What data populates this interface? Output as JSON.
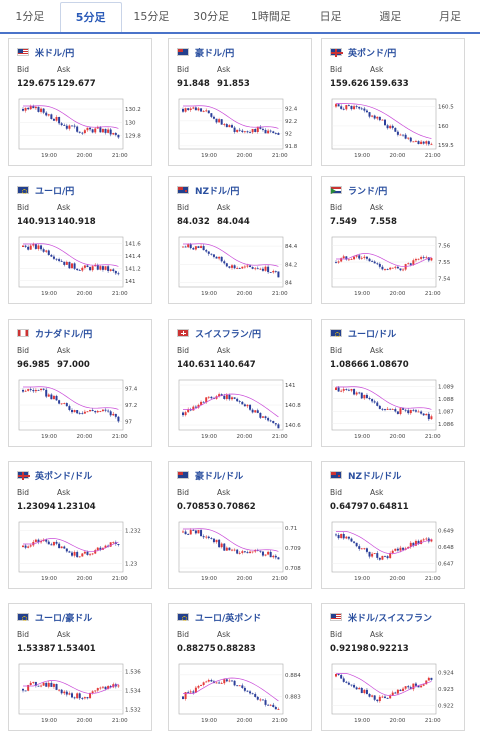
{
  "tabs": [
    {
      "label": "1分足"
    },
    {
      "label": "5分足"
    },
    {
      "label": "15分足"
    },
    {
      "label": "30分足"
    },
    {
      "label": "1時間足"
    },
    {
      "label": "日足"
    },
    {
      "label": "週足"
    },
    {
      "label": "月足"
    }
  ],
  "active_tab": 1,
  "bid_label": "Bid",
  "ask_label": "Ask",
  "x_ticks": [
    "19:00",
    "20:00",
    "21:00"
  ],
  "cards": [
    {
      "pair": "米ドル/円",
      "bid": "129.675",
      "ask": "129.677",
      "flag": "us",
      "y_ticks": [
        "130.2",
        "130",
        "129.8"
      ],
      "ylim": [
        129.6,
        130.35
      ],
      "trend": "down"
    },
    {
      "pair": "豪ドル/円",
      "bid": "91.848",
      "ask": "91.853",
      "flag": "au",
      "y_ticks": [
        "92.4",
        "92.2",
        "92",
        "91.8"
      ],
      "ylim": [
        91.75,
        92.55
      ],
      "trend": "down"
    },
    {
      "pair": "英ポンド/円",
      "bid": "159.626",
      "ask": "159.633",
      "flag": "gb",
      "y_ticks": [
        "160.5",
        "160",
        "159.5"
      ],
      "ylim": [
        159.4,
        160.7
      ],
      "trend": "vdown"
    },
    {
      "pair": "ユーロ/円",
      "bid": "140.913",
      "ask": "140.918",
      "flag": "eu",
      "y_ticks": [
        "141.6",
        "141.4",
        "141.2",
        "141"
      ],
      "ylim": [
        140.9,
        141.7
      ],
      "trend": "down"
    },
    {
      "pair": "NZドル/円",
      "bid": "84.032",
      "ask": "84.044",
      "flag": "nz",
      "y_ticks": [
        "84.4",
        "84.2",
        "84"
      ],
      "ylim": [
        83.95,
        84.5
      ],
      "trend": "down"
    },
    {
      "pair": "ランド/円",
      "bid": "7.549",
      "ask": "7.558",
      "flag": "za",
      "y_ticks": [
        "7.56",
        "7.55",
        "7.54"
      ],
      "ylim": [
        7.535,
        7.565
      ],
      "trend": "flat"
    },
    {
      "pair": "カナダドル/円",
      "bid": "96.985",
      "ask": "97.000",
      "flag": "ca",
      "y_ticks": [
        "97.4",
        "97.2",
        "97"
      ],
      "ylim": [
        96.9,
        97.5
      ],
      "trend": "down"
    },
    {
      "pair": "スイスフラン/円",
      "bid": "140.631",
      "ask": "140.647",
      "flag": "ch",
      "y_ticks": [
        "141",
        "140.8",
        "140.6"
      ],
      "ylim": [
        140.55,
        141.05
      ],
      "trend": "hump"
    },
    {
      "pair": "ユーロ/ドル",
      "bid": "1.08666",
      "ask": "1.08670",
      "flag": "eu",
      "y_ticks": [
        "1.089",
        "1.088",
        "1.087",
        "1.086"
      ],
      "ylim": [
        1.0855,
        1.0895
      ],
      "trend": "down"
    },
    {
      "pair": "英ポンド/ドル",
      "bid": "1.23094",
      "ask": "1.23104",
      "flag": "gb",
      "y_ticks": [
        "1.232",
        "1.23"
      ],
      "ylim": [
        1.2295,
        1.2325
      ],
      "trend": "flat"
    },
    {
      "pair": "豪ドル/ドル",
      "bid": "0.70853",
      "ask": "0.70862",
      "flag": "au",
      "y_ticks": [
        "0.71",
        "0.709",
        "0.708"
      ],
      "ylim": [
        0.7078,
        0.7103
      ],
      "trend": "down"
    },
    {
      "pair": "NZドル/ドル",
      "bid": "0.64797",
      "ask": "0.64811",
      "flag": "nz",
      "y_ticks": [
        "0.649",
        "0.648",
        "0.647"
      ],
      "ylim": [
        0.6465,
        0.6495
      ],
      "trend": "dip"
    },
    {
      "pair": "ユーロ/豪ドル",
      "bid": "1.53387",
      "ask": "1.53401",
      "flag": "eu",
      "y_ticks": [
        "1.536",
        "1.534",
        "1.532"
      ],
      "ylim": [
        1.5315,
        1.5368
      ],
      "trend": "flat"
    },
    {
      "pair": "ユーロ/英ポンド",
      "bid": "0.88275",
      "ask": "0.88283",
      "flag": "eu",
      "y_ticks": [
        "0.884",
        "0.883"
      ],
      "ylim": [
        0.8822,
        0.8845
      ],
      "trend": "hump"
    },
    {
      "pair": "米ドル/スイスフラン",
      "bid": "0.92198",
      "ask": "0.92213",
      "flag": "us",
      "y_ticks": [
        "0.924",
        "0.923",
        "0.922"
      ],
      "ylim": [
        0.9215,
        0.9245
      ],
      "trend": "dip"
    }
  ],
  "colors": {
    "up": "#e33a3a",
    "down": "#2c3f9a",
    "ma": "#c94bd8",
    "link": "#2a4f9f",
    "tab_active": "#2a5ab8"
  }
}
